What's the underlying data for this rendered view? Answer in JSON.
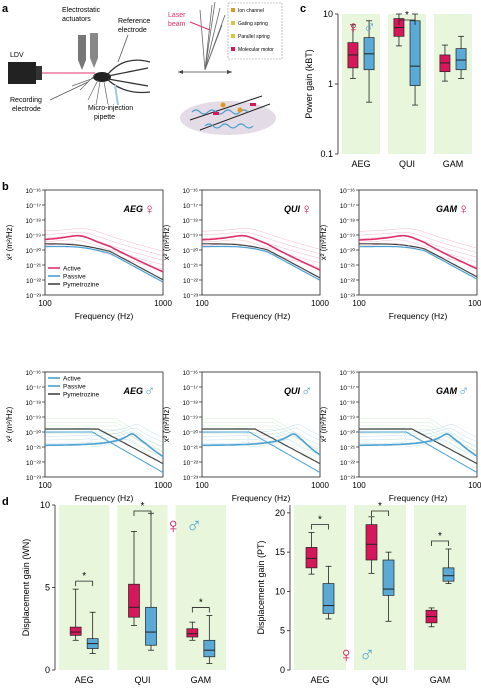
{
  "panel_labels": {
    "a": "a",
    "b": "b",
    "c": "c",
    "d": "d"
  },
  "colors": {
    "female": "#d6185b",
    "male": "#5aa9d6",
    "active": "#e0306a",
    "passive": "#4aa0d0",
    "pym": "#444444",
    "shade": "#e8f7dc",
    "grey": "#888888"
  },
  "panel_a": {
    "labels": {
      "ldv": "LDV",
      "electrostatic_line1": "Electrostatic",
      "electrostatic_line2": "actuators",
      "reference_line1": "Reference",
      "reference_line2": "electrode",
      "recording_line1": "Recording",
      "recording_line2": "electrode",
      "micro": "Micro-injection",
      "pipette": "pipette",
      "laser_line1": "Laser",
      "laser_line2": "beam",
      "legend": [
        "Ion channel",
        "Gating spring",
        "Parallel spring",
        "Molecular motor"
      ]
    }
  },
  "panel_b": {
    "ylabel": "x² (m²/Hz)",
    "xlabel": "Frequency (Hz)",
    "yticks": [
      "10⁻¹⁶",
      "10⁻¹⁷",
      "10⁻¹⁸",
      "10⁻¹⁹",
      "10⁻²⁰",
      "10⁻²¹",
      "10⁻²²",
      "10⁻²³"
    ],
    "xticks": [
      "100",
      "1000"
    ],
    "legend": [
      "Active",
      "Passive",
      "Pymetrozine"
    ],
    "titles_top": [
      "AEG",
      "QUI",
      "GAM"
    ],
    "titles_bottom": [
      "AEG",
      "QUI",
      "GAM"
    ],
    "female_symbol": "♀",
    "male_symbol": "♂"
  },
  "chart_data": [
    {
      "panel": "c",
      "type": "box",
      "ylabel": "Power gain (kBT)",
      "yscale": "log",
      "ylim": [
        0.1,
        10
      ],
      "yticks": [
        "10",
        "1",
        "0.1"
      ],
      "categories": [
        "AEG",
        "QUI",
        "GAM"
      ],
      "series": [
        {
          "name": "female",
          "boxes": [
            {
              "min": 1.2,
              "q1": 1.7,
              "median": 2.6,
              "q3": 3.9,
              "max": 7.0
            },
            {
              "min": 3.5,
              "q1": 4.8,
              "median": 6.4,
              "q3": 8.6,
              "max": 11.0
            },
            {
              "min": 1.1,
              "q1": 1.5,
              "median": 2.0,
              "q3": 2.6,
              "max": 3.6
            }
          ]
        },
        {
          "name": "male",
          "boxes": [
            {
              "min": 0.55,
              "q1": 1.6,
              "median": 2.7,
              "q3": 4.6,
              "max": 8.0
            },
            {
              "min": 0.5,
              "q1": 0.95,
              "median": 1.8,
              "q3": 8.0,
              "max": 11.0
            },
            {
              "min": 1.2,
              "q1": 1.6,
              "median": 2.2,
              "q3": 3.2,
              "max": 4.8
            }
          ]
        }
      ],
      "significance": [
        {
          "category": "QUI",
          "label": "*"
        }
      ]
    },
    {
      "panel": "d-left",
      "type": "box",
      "ylabel": "Displacement gain (WN)",
      "ylim": [
        0,
        10
      ],
      "yticks": [
        "10",
        "5",
        "0"
      ],
      "categories": [
        "AEG",
        "QUI",
        "GAM"
      ],
      "series": [
        {
          "name": "female",
          "boxes": [
            {
              "min": 1.8,
              "q1": 2.1,
              "median": 2.3,
              "q3": 2.6,
              "max": 4.9
            },
            {
              "min": 2.7,
              "q1": 3.2,
              "median": 3.8,
              "q3": 5.2,
              "max": 8.4
            },
            {
              "min": 1.8,
              "q1": 2.0,
              "median": 2.2,
              "q3": 2.5,
              "max": 2.9
            }
          ]
        },
        {
          "name": "male",
          "boxes": [
            {
              "min": 1.0,
              "q1": 1.3,
              "median": 1.6,
              "q3": 1.9,
              "max": 3.5
            },
            {
              "min": 1.2,
              "q1": 1.5,
              "median": 2.3,
              "q3": 3.8,
              "max": 9.5
            },
            {
              "min": 0.4,
              "q1": 0.8,
              "median": 1.2,
              "q3": 1.8,
              "max": 3.3
            }
          ]
        }
      ],
      "significance": [
        {
          "category": "AEG",
          "label": "*"
        },
        {
          "category": "QUI",
          "label": "*"
        },
        {
          "category": "GAM",
          "label": "*"
        }
      ]
    },
    {
      "panel": "d-right",
      "type": "box",
      "ylabel": "Displacement gain (PT)",
      "ylim": [
        0,
        21
      ],
      "yticks": [
        "20",
        "15",
        "10",
        "5",
        "0"
      ],
      "categories": [
        "AEG",
        "QUI",
        "GAM"
      ],
      "series": [
        {
          "name": "female",
          "boxes": [
            {
              "min": 12.2,
              "q1": 13.0,
              "median": 14.2,
              "q3": 15.6,
              "max": 17.5
            },
            {
              "min": 12.3,
              "q1": 14.0,
              "median": 16.0,
              "q3": 18.5,
              "max": 19.5
            },
            {
              "min": 5.5,
              "q1": 6.0,
              "median": 6.8,
              "q3": 7.6,
              "max": 7.9
            }
          ]
        },
        {
          "name": "male",
          "boxes": [
            {
              "min": 6.5,
              "q1": 7.2,
              "median": 8.2,
              "q3": 11.0,
              "max": 13.2
            },
            {
              "min": 6.2,
              "q1": 9.5,
              "median": 10.3,
              "q3": 14.0,
              "max": 15.0
            },
            {
              "min": 11.0,
              "q1": 11.3,
              "median": 12.0,
              "q3": 13.0,
              "max": 15.4
            }
          ]
        }
      ],
      "significance": [
        {
          "category": "AEG",
          "label": "*"
        },
        {
          "category": "QUI",
          "label": "*"
        },
        {
          "category": "GAM",
          "label": "*"
        }
      ]
    }
  ]
}
